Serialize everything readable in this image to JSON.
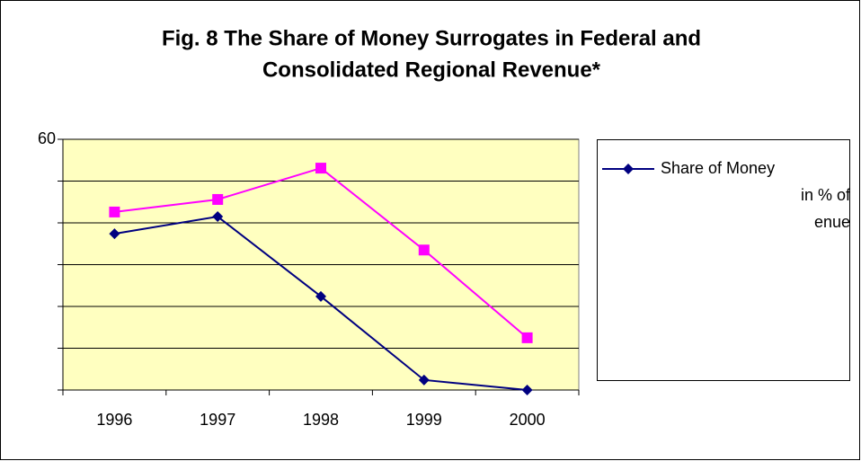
{
  "chart_data": {
    "type": "line",
    "title": [
      "Fig. 8 The Share of Money Surrogates in Federal and",
      "Consolidated Regional Revenue*"
    ],
    "categories": [
      "1996",
      "1997",
      "1998",
      "1999",
      "2000"
    ],
    "series": [
      {
        "name": "Share of Money",
        "color": "#000080",
        "marker": "diamond",
        "values": [
          37.4,
          41.5,
          22.4,
          2.4,
          0
        ]
      },
      {
        "color": "#ff00ff",
        "marker": "square",
        "values": [
          42.6,
          45.6,
          53.1,
          33.5,
          12.5
        ]
      }
    ],
    "legend_lines": [
      "in % of",
      "enue"
    ],
    "ylim": [
      0,
      60
    ],
    "yticks": [
      0,
      10,
      20,
      30,
      40,
      50,
      60
    ],
    "labeled_yticks": [
      60
    ],
    "grid": true,
    "plot_background": "#ffffc0",
    "legend": "right"
  }
}
